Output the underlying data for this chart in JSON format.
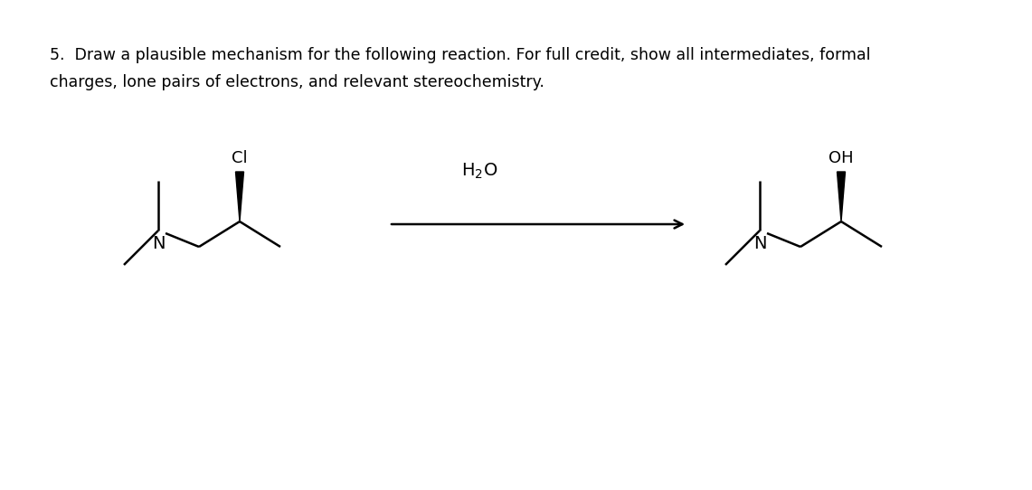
{
  "title_line1": "5.  Draw a plausible mechanism for the following reaction. For full credit, show all intermediates, formal",
  "title_line2": "charges, lone pairs of electrons, and relevant stereochemistry.",
  "title_fontsize": 12.5,
  "bg_color": "#ffffff",
  "line_color": "#000000",
  "text_color": "#000000",
  "mol_lw": 1.8,
  "reagent_label": "H₂O"
}
